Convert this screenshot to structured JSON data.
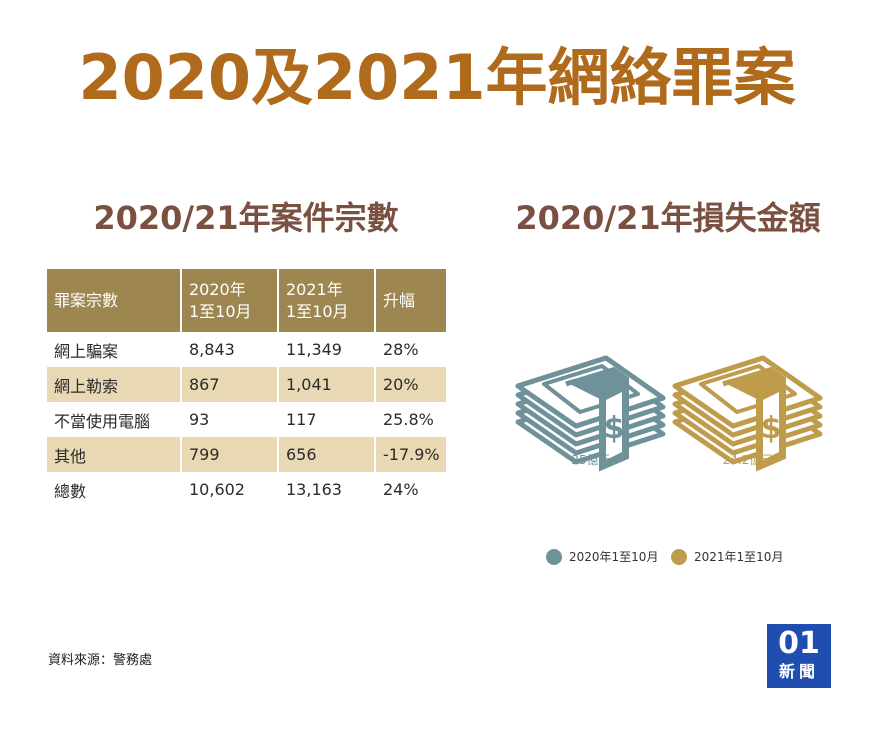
{
  "title": "2020及2021年網絡罪案",
  "left_subtitle": "2020/21年案件宗數",
  "right_subtitle": "2020/21年損失金額",
  "table": {
    "headers": [
      "罪案宗數",
      "2020年\n1至10月",
      "2021年\n1至10月",
      "升幅"
    ],
    "rows": [
      [
        "網上騙案",
        "8,843",
        "11,349",
        "28%"
      ],
      [
        "網上勒索",
        "867",
        "1,041",
        "20%"
      ],
      [
        "不當使用電腦",
        "93",
        "117",
        "25.8%"
      ],
      [
        "其他",
        "799",
        "656",
        "-17.9%"
      ],
      [
        "總數",
        "10,602",
        "13,163",
        "24%"
      ]
    ]
  },
  "chart_data": {
    "type": "table",
    "title": "2020/21年損失金額",
    "categories": [
      "2020年1至10月",
      "2021年1至10月"
    ],
    "values": [
      25,
      24.2
    ],
    "value_labels": [
      "25億元",
      "24.2億元"
    ],
    "legend": [
      "2020年1至10月",
      "2021年1至10月"
    ],
    "legend_position": "bottom",
    "colors": [
      "#6f929a",
      "#bf9c4c"
    ]
  },
  "source": "資料來源：警務處",
  "logo": {
    "top": "01",
    "bottom": "新聞"
  },
  "colors": {
    "title": "#b06a1c",
    "subtitle": "#7a5040",
    "header": "#9d8650",
    "stripe": "#e8d9b4",
    "logo": "#1f4db0"
  }
}
